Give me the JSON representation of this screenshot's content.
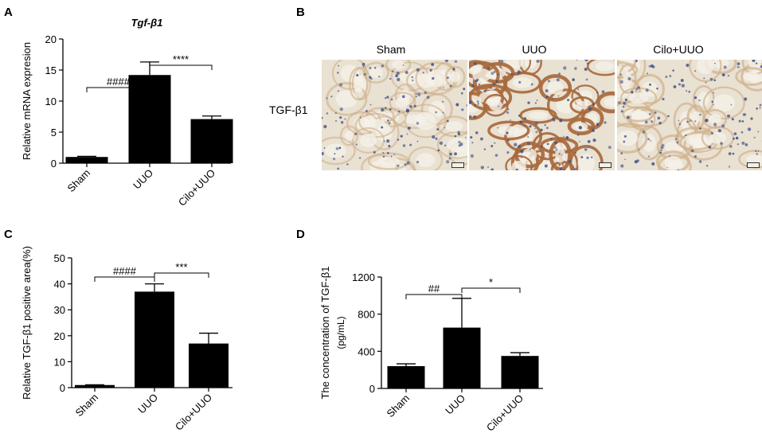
{
  "panels": {
    "A": {
      "letter": "A",
      "chart_data": {
        "type": "bar",
        "title": "Tgf-β1",
        "xlabel": "",
        "ylabel": "Relative mRNA expresion",
        "categories": [
          "Sham",
          "UUO",
          "Cilo+UUO"
        ],
        "values": [
          1.0,
          14.2,
          7.1
        ],
        "errors": [
          0.1,
          2.1,
          0.5
        ],
        "ylim": [
          0,
          20
        ],
        "yticks": [
          0,
          5,
          10,
          15,
          20
        ],
        "significance": [
          {
            "from": 0,
            "to": 1,
            "label": "####"
          },
          {
            "from": 1,
            "to": 2,
            "label": "****"
          }
        ]
      }
    },
    "B": {
      "letter": "B",
      "row_label": "TGF-β1",
      "columns": [
        "Sham",
        "UUO",
        "Cilo+UUO"
      ]
    },
    "C": {
      "letter": "C",
      "chart_data": {
        "type": "bar",
        "title": "",
        "xlabel": "",
        "ylabel": "Relative TGF-β1 positive area(%)",
        "categories": [
          "Sham",
          "UUO",
          "Cilo+UUO"
        ],
        "values": [
          1.0,
          37.0,
          17.0
        ],
        "errors": [
          0.1,
          3.0,
          4.0
        ],
        "ylim": [
          0,
          50
        ],
        "yticks": [
          0,
          10,
          20,
          30,
          40,
          50
        ],
        "significance": [
          {
            "from": 0,
            "to": 1,
            "label": "####"
          },
          {
            "from": 1,
            "to": 2,
            "label": "***"
          }
        ]
      }
    },
    "D": {
      "letter": "D",
      "chart_data": {
        "type": "bar",
        "title": "",
        "xlabel": "",
        "ylabel": "The concentration of TGF-β1",
        "ylabel2": "(pg/mL)",
        "categories": [
          "Sham",
          "UUO",
          "Cilo+UUO"
        ],
        "values": [
          240,
          655,
          350
        ],
        "errors": [
          25,
          315,
          35
        ],
        "ylim": [
          0,
          1200
        ],
        "yticks": [
          0,
          400,
          800,
          1200
        ],
        "significance": [
          {
            "from": 0,
            "to": 1,
            "label": "##"
          },
          {
            "from": 1,
            "to": 2,
            "label": "*"
          }
        ]
      }
    }
  },
  "colors": {
    "bar": "#000000",
    "tissue_background": "#e9e1d2",
    "tissue_stain_weak": "#cfb08a",
    "tissue_stain_strong": "#a86a3c",
    "nuclei": "#3f4f86"
  }
}
